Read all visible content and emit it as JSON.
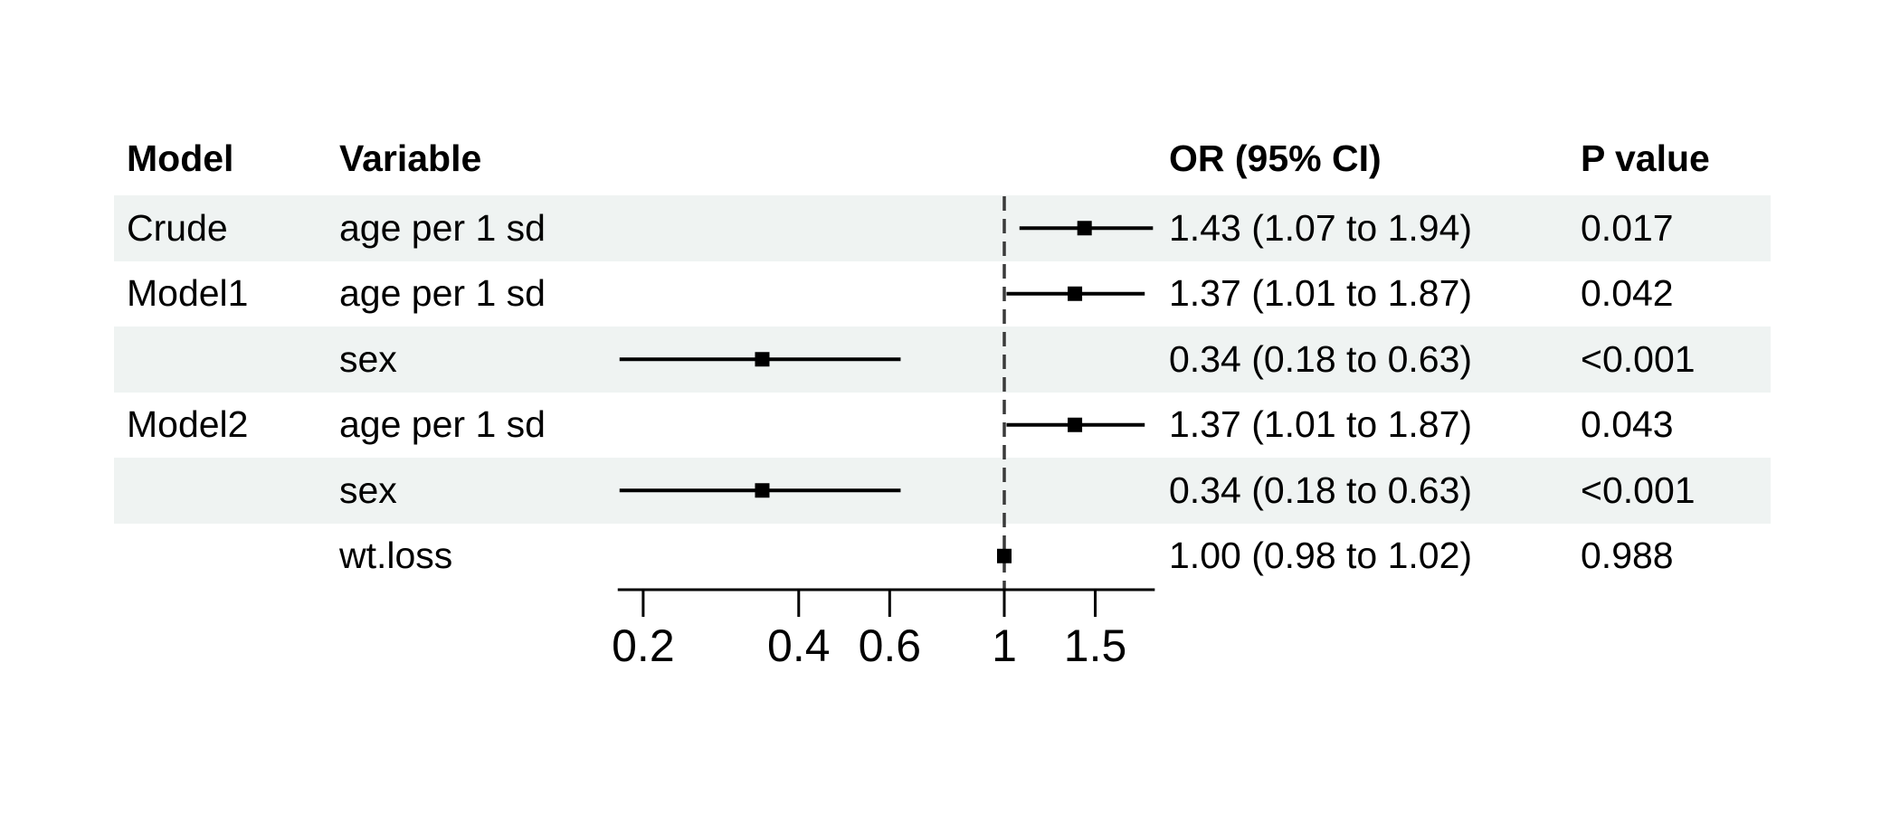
{
  "chart_data": {
    "type": "scatter",
    "variant": "forest-plot",
    "columns": [
      "Model",
      "Variable",
      "OR (95% CI)",
      "P value"
    ],
    "rows": [
      {
        "model": "Crude",
        "variable": "age per 1 sd",
        "or": 1.43,
        "ci_low": 1.07,
        "ci_high": 1.94,
        "or_ci_text": "1.43 (1.07 to 1.94)",
        "p_text": "0.017",
        "shaded": true
      },
      {
        "model": "Model1",
        "variable": "age per 1 sd",
        "or": 1.37,
        "ci_low": 1.01,
        "ci_high": 1.87,
        "or_ci_text": "1.37 (1.01 to 1.87)",
        "p_text": "0.042",
        "shaded": false
      },
      {
        "model": "",
        "variable": "sex",
        "or": 0.34,
        "ci_low": 0.18,
        "ci_high": 0.63,
        "or_ci_text": "0.34 (0.18 to 0.63)",
        "p_text": "<0.001",
        "shaded": true
      },
      {
        "model": "Model2",
        "variable": "age per 1 sd",
        "or": 1.37,
        "ci_low": 1.01,
        "ci_high": 1.87,
        "or_ci_text": "1.37 (1.01 to 1.87)",
        "p_text": "0.043",
        "shaded": false
      },
      {
        "model": "",
        "variable": "sex",
        "or": 0.34,
        "ci_low": 0.18,
        "ci_high": 0.63,
        "or_ci_text": "0.34 (0.18 to 0.63)",
        "p_text": "<0.001",
        "shaded": true
      },
      {
        "model": "",
        "variable": "wt.loss",
        "or": 1.0,
        "ci_low": 0.98,
        "ci_high": 1.02,
        "or_ci_text": "1.00 (0.98 to 1.02)",
        "p_text": "0.988",
        "shaded": false
      }
    ],
    "x_axis": {
      "scale": "log10",
      "ticks": [
        0.2,
        0.4,
        0.6,
        1,
        1.5
      ],
      "tick_labels": [
        "0.2",
        "0.4",
        "0.6",
        "1",
        "1.5"
      ],
      "range": [
        0.18,
        1.94
      ],
      "reference_line": 1
    },
    "grid": false,
    "legend": null
  },
  "colors": {
    "stripe": "#eff3f2",
    "text": "#000000",
    "marker": "#000000",
    "ci_line": "#000000",
    "axis": "#000000",
    "reference_line": "#3a3a3a",
    "background": "#ffffff"
  }
}
